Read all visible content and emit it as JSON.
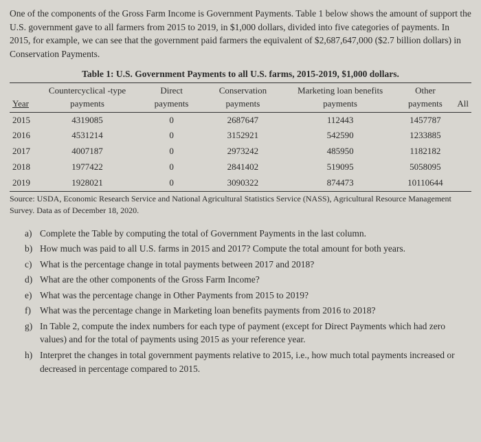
{
  "intro": "One of the components of the Gross Farm Income is Government Payments. Table 1 below shows the amount of support the U.S. government gave to all farmers from 2015 to 2019, in $1,000 dollars, divided into five categories of payments. In 2015, for example, we can see that the government paid farmers the equivalent of $2,687,647,000 ($2.7 billion dollars) in Conservation Payments.",
  "table": {
    "title": "Table 1: U.S. Government Payments to all U.S. farms, 2015-2019, $1,000 dollars.",
    "headers": {
      "year": "Year",
      "countercyclical": "Countercyclical -type payments",
      "direct": "Direct payments",
      "conservation": "Conservation payments",
      "marketing": "Marketing loan benefits payments",
      "other": "Other payments",
      "all": "All"
    },
    "rows": [
      {
        "year": "2015",
        "cc": "4319085",
        "direct": "0",
        "cons": "2687647",
        "mkt": "112443",
        "other": "1457787",
        "all": ""
      },
      {
        "year": "2016",
        "cc": "4531214",
        "direct": "0",
        "cons": "3152921",
        "mkt": "542590",
        "other": "1233885",
        "all": ""
      },
      {
        "year": "2017",
        "cc": "4007187",
        "direct": "0",
        "cons": "2973242",
        "mkt": "485950",
        "other": "1182182",
        "all": ""
      },
      {
        "year": "2018",
        "cc": "1977422",
        "direct": "0",
        "cons": "2841402",
        "mkt": "519095",
        "other": "5058095",
        "all": ""
      },
      {
        "year": "2019",
        "cc": "1928021",
        "direct": "0",
        "cons": "3090322",
        "mkt": "874473",
        "other": "10110644",
        "all": ""
      }
    ],
    "source": "Source: USDA, Economic Research Service and National Agricultural Statistics Service (NASS), Agricultural Resource Management Survey. Data as of December 18, 2020."
  },
  "questions": [
    {
      "letter": "a)",
      "text": "Complete the Table by computing the total of Government Payments in the last column."
    },
    {
      "letter": "b)",
      "text": "How much was paid to all U.S. farms in 2015 and 2017? Compute the total amount for both years."
    },
    {
      "letter": "c)",
      "text": "What is the percentage change in total payments between 2017 and 2018?"
    },
    {
      "letter": "d)",
      "text": "What are the other components of the Gross Farm Income?"
    },
    {
      "letter": "e)",
      "text": "What was the percentage change in Other Payments from 2015 to 2019?"
    },
    {
      "letter": "f)",
      "text": "What was the percentage change in Marketing loan benefits payments from 2016 to 2018?"
    },
    {
      "letter": "g)",
      "text": "In Table 2, compute the index numbers for each type of payment (except for Direct Payments which had zero values) and for the total of payments using 2015 as your reference year."
    },
    {
      "letter": "h)",
      "text": "Interpret the changes in total government payments relative to 2015, i.e., how much total payments increased or decreased in percentage compared to 2015."
    }
  ]
}
